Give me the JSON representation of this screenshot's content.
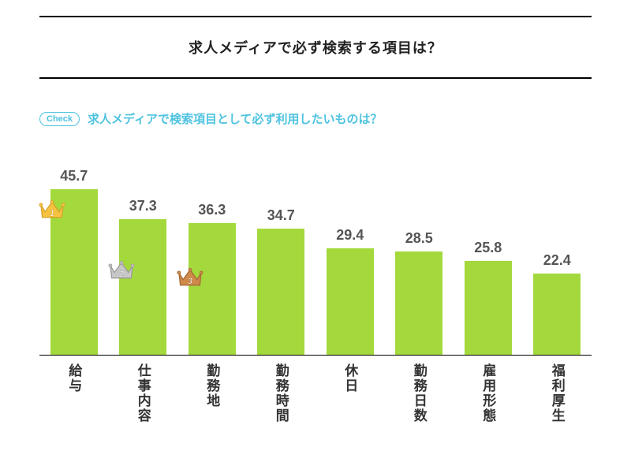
{
  "title": "求人メディアで必ず検索する項目は？",
  "check_label": "Check",
  "subtitle": "求人メディアで検索項目として必ず利用したいものは？",
  "chart": {
    "type": "bar",
    "bar_color": "#a4d93d",
    "value_color": "#555555",
    "label_color": "#333333",
    "axis_color": "#000000",
    "accent_color": "#4ec3e0",
    "background_color": "#ffffff",
    "ylim": [
      0,
      50
    ],
    "value_fontsize": 18,
    "label_fontsize": 17,
    "bars": [
      {
        "label": "給与",
        "value": 45.7,
        "rank": 1,
        "crown_fill": "#f5c341",
        "crown_stroke": "#d9a32a"
      },
      {
        "label": "仕事内容",
        "value": 37.3,
        "rank": 2,
        "crown_fill": "#c8c8c8",
        "crown_stroke": "#9b9b9b"
      },
      {
        "label": "勤務地",
        "value": 36.3,
        "rank": 3,
        "crown_fill": "#d08a4a",
        "crown_stroke": "#a86b37"
      },
      {
        "label": "勤務時間",
        "value": 34.7
      },
      {
        "label": "休日",
        "value": 29.4
      },
      {
        "label": "勤務日数",
        "value": 28.5
      },
      {
        "label": "雇用形態",
        "value": 25.8
      },
      {
        "label": "福利厚生",
        "value": 22.4
      }
    ]
  }
}
